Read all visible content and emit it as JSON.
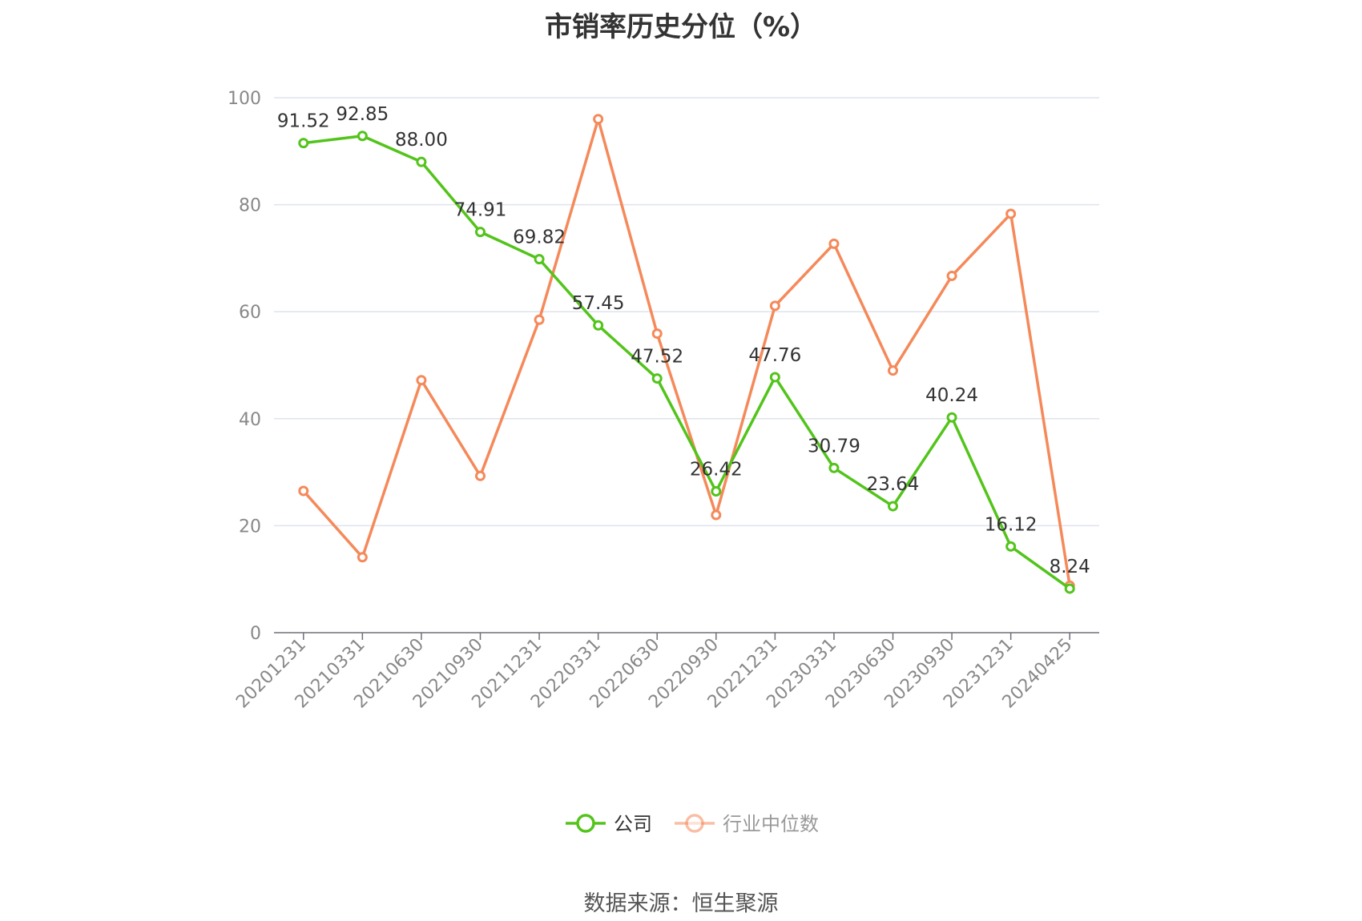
{
  "chart_data": {
    "type": "line",
    "title": "市销率历史分位（%）",
    "categories": [
      "20201231",
      "20210331",
      "20210630",
      "20210930",
      "20211231",
      "20220331",
      "20220630",
      "20220930",
      "20221231",
      "20230331",
      "20230630",
      "20230930",
      "20231231",
      "20240425"
    ],
    "series": [
      {
        "name": "公司",
        "color": "#52c41a",
        "values": [
          91.52,
          92.85,
          88.0,
          74.91,
          69.82,
          57.45,
          47.52,
          26.42,
          47.76,
          30.79,
          23.64,
          40.24,
          16.12,
          8.24
        ],
        "labels": [
          "91.52",
          "92.85",
          "88.00",
          "74.91",
          "69.82",
          "57.45",
          "47.52",
          "26.42",
          "47.76",
          "30.79",
          "23.64",
          "40.24",
          "16.12",
          "8.24"
        ]
      },
      {
        "name": "行业中位数",
        "color": "#f5895a",
        "values": [
          26.5,
          14.1,
          47.2,
          29.3,
          58.5,
          96.0,
          55.9,
          22.0,
          61.1,
          72.7,
          49.0,
          66.7,
          78.3,
          8.8
        ]
      }
    ],
    "ylim": [
      0,
      100
    ],
    "yticks": [
      "0",
      "20",
      "40",
      "60",
      "80",
      "100"
    ],
    "grid": true,
    "legend_position": "bottom"
  },
  "source_note": "数据来源：恒生聚源"
}
